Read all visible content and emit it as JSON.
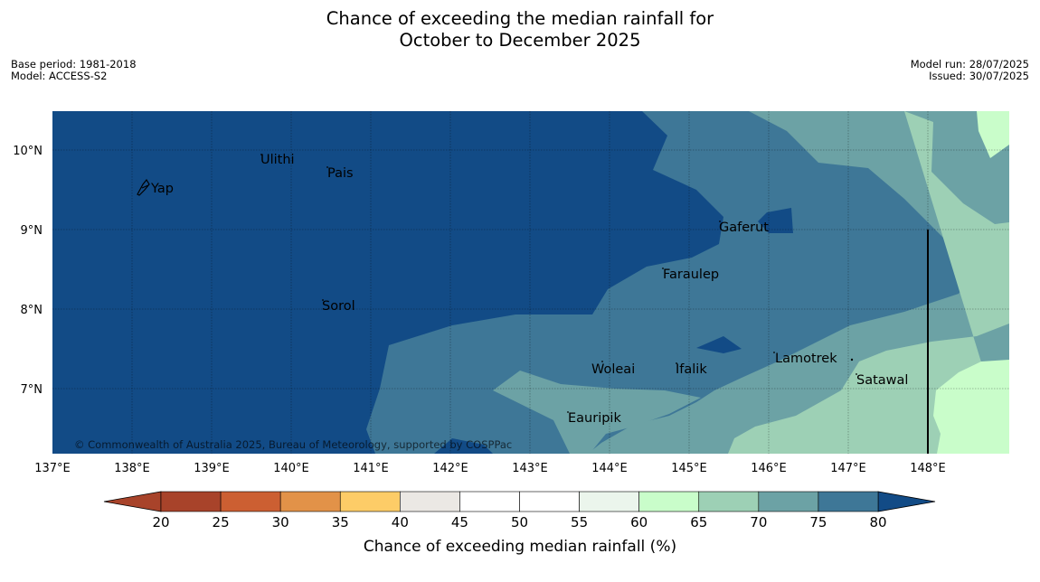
{
  "title": {
    "line1": "Chance of exceeding the median rainfall for",
    "line2": "October to December 2025"
  },
  "meta_left": {
    "base_period": "Base period: 1981-2018",
    "model": "Model: ACCESS-S2"
  },
  "meta_right": {
    "model_run": "Model run: 28/07/2025",
    "issued": "Issued: 30/07/2025"
  },
  "map": {
    "lon_labels": [
      "137°E",
      "138°E",
      "139°E",
      "140°E",
      "141°E",
      "142°E",
      "143°E",
      "144°E",
      "145°E",
      "146°E",
      "147°E",
      "148°E"
    ],
    "lat_labels": [
      "10°N",
      "9°N",
      "8°N",
      "7°N"
    ],
    "places": [
      "Ulithi",
      "Pais",
      "Yap",
      "Gaferut",
      "Faraulep",
      "Sorol",
      "Woleai",
      "Ifalik",
      "Lamotrek",
      "Satawal",
      "Eauripik"
    ],
    "copyright": "© Commonwealth of Australia 2025, Bureau of Meteorology, supported by COSPPac"
  },
  "colorbar": {
    "ticks": [
      "20",
      "25",
      "30",
      "35",
      "40",
      "45",
      "50",
      "55",
      "60",
      "65",
      "70",
      "75",
      "80"
    ],
    "colors": [
      "#a8432a",
      "#cc5f32",
      "#e29248",
      "#fdcc67",
      "#ebe8e4",
      "#ffffff",
      "#ffffff",
      "#ebf5ec",
      "#c9fdca",
      "#9dd0b5",
      "#6ca2a5",
      "#3e7797",
      "#124b86"
    ],
    "label": "Chance of exceeding median rainfall (%)"
  }
}
